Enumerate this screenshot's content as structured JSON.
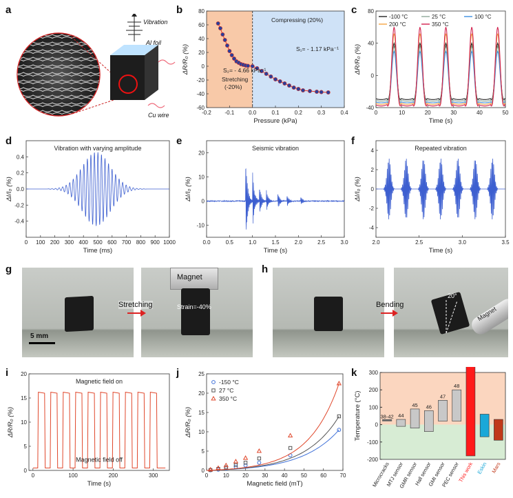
{
  "figure": {
    "panel_letters": [
      "a",
      "b",
      "c",
      "d",
      "e",
      "f",
      "g",
      "h",
      "i",
      "j",
      "k"
    ],
    "a": {
      "vibration": "Vibration",
      "al_foil": "Al foil",
      "cu_wire": "Cu wire"
    },
    "b": {
      "stretching": "Stretching",
      "stretching_pct": "(-20%)",
      "compressing": "Compressing (20%)",
      "s1": "S₂= - 4.66 kPa⁻¹",
      "s2": "S₁= - 1.17 kPa⁻¹"
    },
    "d": {
      "title": "Vibration with varying amplitude"
    },
    "e": {
      "title": "Seismic vibration"
    },
    "f": {
      "title": "Repeated vibration"
    },
    "g": {
      "magnet": "Magnet",
      "arrow": "Stretching",
      "strain": "Strain=-40%",
      "scale": "5 mm"
    },
    "h": {
      "arrow": "Bending",
      "angle": "20°",
      "magnet": "Magnet"
    },
    "i": {
      "on": "Magnetic field on",
      "off": "Magnetic field off"
    }
  },
  "chart_data": [
    {
      "id": "b",
      "type": "scatter",
      "xlabel": "Pressure (kPa)",
      "ylabel": "ΔR/R₀ (%)",
      "xlim": [
        -0.2,
        0.4
      ],
      "ylim": [
        -60,
        80
      ],
      "xticks": [
        "-0.2",
        "-0.1",
        "0.0",
        "0.1",
        "0.2",
        "0.3",
        "0.4"
      ],
      "yticks": [
        "-60",
        "-40",
        "-20",
        "0",
        "20",
        "40",
        "60",
        "80"
      ],
      "points": [
        [
          -0.15,
          62
        ],
        [
          -0.14,
          55
        ],
        [
          -0.13,
          46
        ],
        [
          -0.12,
          38
        ],
        [
          -0.11,
          30
        ],
        [
          -0.1,
          22
        ],
        [
          -0.09,
          16
        ],
        [
          -0.08,
          11
        ],
        [
          -0.07,
          7
        ],
        [
          -0.06,
          5
        ],
        [
          -0.05,
          3
        ],
        [
          -0.04,
          2
        ],
        [
          -0.03,
          1
        ],
        [
          -0.02,
          0.5
        ],
        [
          0.0,
          0
        ],
        [
          0.02,
          -3
        ],
        [
          0.04,
          -7
        ],
        [
          0.06,
          -11
        ],
        [
          0.08,
          -15
        ],
        [
          0.1,
          -19
        ],
        [
          0.12,
          -22
        ],
        [
          0.14,
          -25
        ],
        [
          0.16,
          -28
        ],
        [
          0.18,
          -31
        ],
        [
          0.2,
          -33
        ],
        [
          0.22,
          -35
        ],
        [
          0.25,
          -36
        ],
        [
          0.28,
          -37
        ],
        [
          0.3,
          -37.5
        ],
        [
          0.33,
          -38
        ]
      ]
    },
    {
      "id": "c",
      "type": "line",
      "xlabel": "Time (s)",
      "ylabel": "ΔR/R₀ (%)",
      "xlim": [
        0,
        50
      ],
      "ylim": [
        -40,
        80
      ],
      "xticks": [
        "0",
        "10",
        "20",
        "30",
        "40",
        "50"
      ],
      "yticks": [
        "-40",
        "0",
        "40",
        "80"
      ],
      "period": 10,
      "series": [
        {
          "name": "-100 °C",
          "color": "#222222",
          "max": 40,
          "min": -30
        },
        {
          "name": "25 °C",
          "color": "#8fa89a",
          "max": 36,
          "min": -32
        },
        {
          "name": "100 °C",
          "color": "#3d8ee0",
          "max": 30,
          "min": -34
        },
        {
          "name": "200 °C",
          "color": "#f4a442",
          "max": 52,
          "min": -36
        },
        {
          "name": "350 °C",
          "color": "#d11f4c",
          "max": 60,
          "min": -38
        }
      ]
    },
    {
      "id": "d",
      "type": "line",
      "xlabel": "Time (ms)",
      "ylabel": "ΔI/I₀ (%)",
      "xlim": [
        0,
        1000
      ],
      "ylim": [
        -0.6,
        0.6
      ],
      "xticks": [
        "0",
        "100",
        "200",
        "300",
        "400",
        "500",
        "600",
        "700",
        "800",
        "900",
        "1000"
      ],
      "yticks": [
        "-0.4",
        "-0.2",
        "0.0",
        "0.2",
        "0.4"
      ],
      "peak_amplitude": 0.46,
      "center": 490,
      "start": 150,
      "end": 840,
      "cycles": 28
    },
    {
      "id": "e",
      "type": "line",
      "xlabel": "Time (s)",
      "ylabel": "ΔI/I₀ (%)",
      "xlim": [
        0,
        3
      ],
      "ylim": [
        -15,
        25
      ],
      "xticks": [
        "0.0",
        "0.5",
        "1.0",
        "1.5",
        "2.0",
        "2.5",
        "3.0"
      ],
      "yticks": [
        "-10",
        "0",
        "10",
        "20"
      ],
      "events": [
        [
          0.85,
          20
        ],
        [
          1.0,
          13
        ],
        [
          1.15,
          7
        ],
        [
          1.3,
          5
        ],
        [
          1.55,
          4
        ],
        [
          1.75,
          3
        ],
        [
          2.05,
          2
        ]
      ]
    },
    {
      "id": "f",
      "type": "line",
      "xlabel": "Time (s)",
      "ylabel": "ΔI/I₀ (%)",
      "xlim": [
        2.0,
        3.5
      ],
      "ylim": [
        -5,
        5
      ],
      "xticks": [
        "2.0",
        "2.5",
        "3.0",
        "3.5"
      ],
      "yticks": [
        "-4",
        "-2",
        "0",
        "2",
        "4"
      ],
      "bursts": [
        2.15,
        2.35,
        2.55,
        2.75,
        2.95,
        3.15,
        3.35
      ],
      "amplitude": 3.2
    },
    {
      "id": "i",
      "type": "line",
      "xlabel": "Time (s)",
      "ylabel": "ΔR/R₀ (%)",
      "xlim": [
        -10,
        340
      ],
      "ylim": [
        0,
        20
      ],
      "xticks": [
        "0",
        "100",
        "200",
        "300"
      ],
      "yticks": [
        "0",
        "5",
        "10",
        "15",
        "20"
      ],
      "high": 16.2,
      "low": 0.5,
      "period": 31,
      "duty": 0.55,
      "count": 10,
      "start": 12
    },
    {
      "id": "j",
      "type": "scatter",
      "xlabel": "Magnetic field (mT)",
      "ylabel": "ΔR/R₀ (%)",
      "xlim": [
        0,
        70
      ],
      "ylim": [
        0,
        25
      ],
      "xticks": [
        "0",
        "10",
        "20",
        "30",
        "40",
        "50",
        "60",
        "70"
      ],
      "yticks": [
        "0",
        "5",
        "10",
        "15",
        "20",
        "25"
      ],
      "x": [
        2,
        6,
        10,
        15,
        20,
        27,
        43,
        68
      ],
      "series": [
        {
          "name": "-150 °C",
          "color": "#3d6fd8",
          "marker": "circle",
          "values": [
            0.05,
            0.2,
            0.5,
            0.9,
            1.3,
            2.0,
            3.9,
            10.5
          ]
        },
        {
          "name": "27 °C",
          "color": "#555555",
          "marker": "square",
          "values": [
            0.1,
            0.4,
            0.8,
            1.4,
            2.0,
            3.1,
            5.8,
            14.0
          ]
        },
        {
          "name": "350 °C",
          "color": "#e0472b",
          "marker": "triangle",
          "values": [
            0.2,
            0.6,
            1.3,
            2.3,
            3.2,
            5.0,
            9.0,
            22.5
          ]
        }
      ]
    },
    {
      "id": "k",
      "type": "bar",
      "ylabel": "Temperature (°C)",
      "ylim": [
        -200,
        300
      ],
      "yticks": [
        "-200",
        "-100",
        "0",
        "100",
        "200",
        "300"
      ],
      "categories": [
        "Microcracks",
        "MTJ sensor",
        "GMR sensor",
        "Hall sensor",
        "GMI sensor",
        "PEC sensor",
        "This work",
        "Eskin",
        "Mars"
      ],
      "refs": [
        "38-42",
        "44",
        "45",
        "46",
        "47",
        "48",
        "",
        "",
        ""
      ],
      "lows": [
        null,
        -10,
        -20,
        -40,
        20,
        20,
        -180,
        -70,
        -90
      ],
      "highs": [
        null,
        30,
        90,
        80,
        140,
        200,
        350,
        60,
        30
      ],
      "colors": [
        "#666666",
        "#c8c8c8",
        "#c8c8c8",
        "#c8c8c8",
        "#c8c8c8",
        "#c8c8c8",
        "#ff1a1a",
        "#1aa8d8",
        "#c0391b"
      ],
      "label_colors": [
        "#222222",
        "#222222",
        "#222222",
        "#222222",
        "#222222",
        "#222222",
        "#ff1a1a",
        "#1aa8d8",
        "#c0391b"
      ]
    }
  ]
}
